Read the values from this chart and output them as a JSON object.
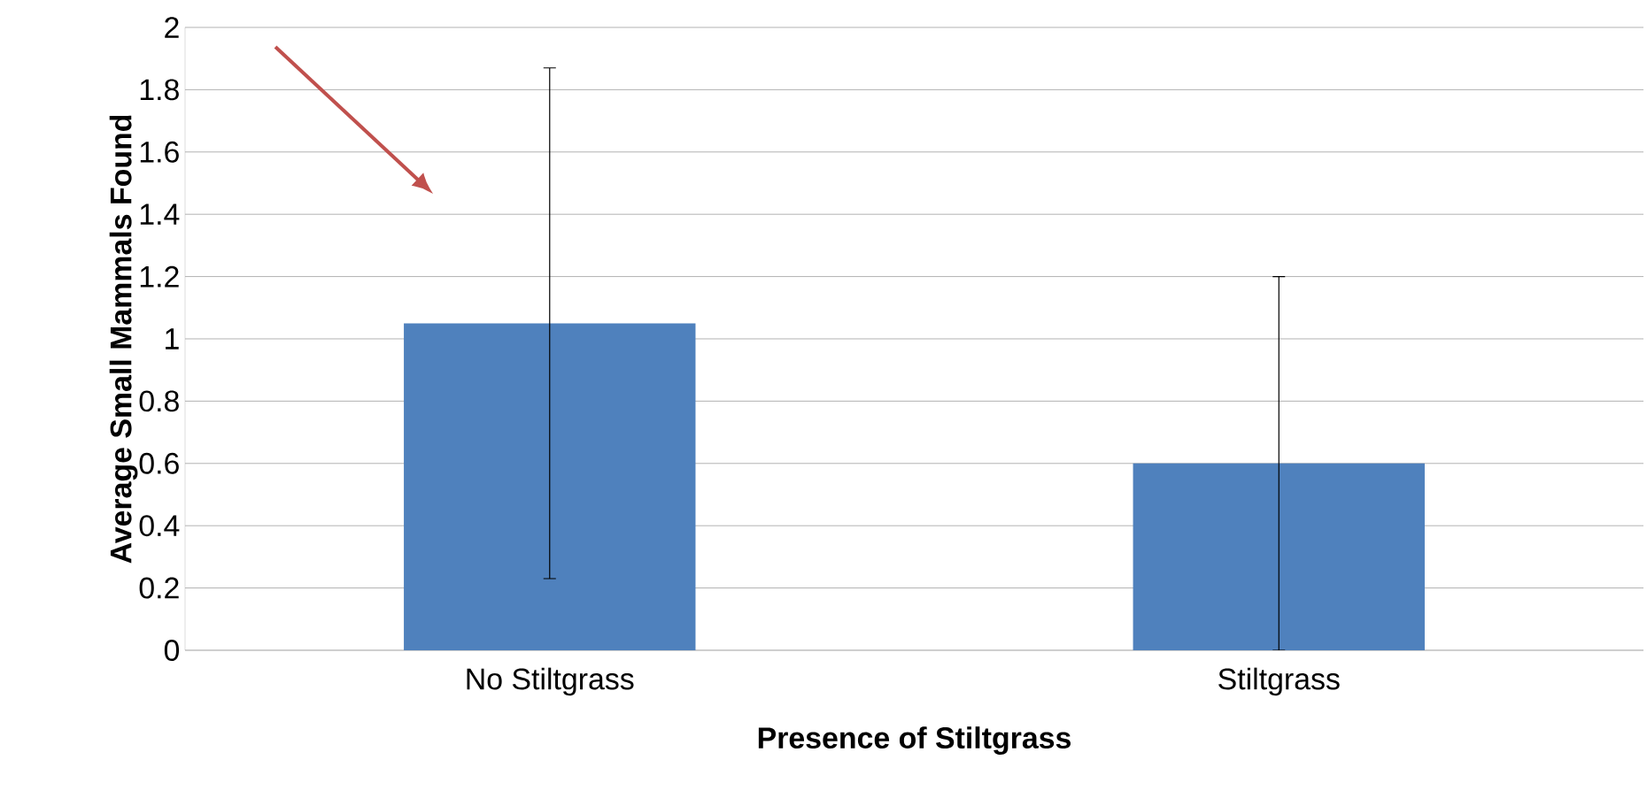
{
  "chart_data": {
    "type": "bar",
    "xlabel": "Presence of Stiltgrass",
    "ylabel": "Average Small Mammals Found",
    "categories": [
      "No Stiltgrass",
      "Stiltgrass"
    ],
    "values": [
      1.05,
      0.6
    ],
    "errors": [
      0.82,
      0.6
    ],
    "color": "#4f81bd",
    "ylim": [
      0,
      2
    ],
    "yticks": [
      0,
      0.2,
      0.4,
      0.6,
      0.8,
      1,
      1.2,
      1.4,
      1.6,
      1.8,
      2
    ],
    "grid": "y"
  }
}
